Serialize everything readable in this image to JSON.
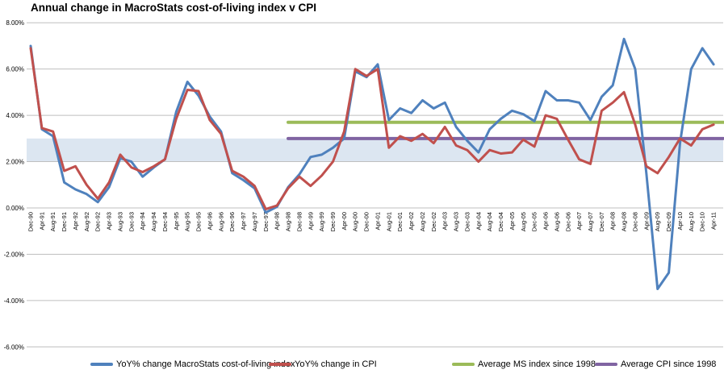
{
  "chart_data": {
    "type": "line",
    "title": "Annual change in MacroStats cost-of-living index v CPI",
    "x_labels": [
      "Dec-90",
      "Apr-91",
      "Aug-91",
      "Dec-91",
      "Apr-92",
      "Aug-92",
      "Dec-92",
      "Apr-93",
      "Aug-93",
      "Dec-93",
      "Apr-94",
      "Aug-94",
      "Dec-94",
      "Apr-95",
      "Aug-95",
      "Dec-95",
      "Apr-96",
      "Aug-96",
      "Dec-96",
      "Apr-97",
      "Aug-97",
      "Dec-97",
      "Apr-98",
      "Aug-98",
      "Dec-98",
      "Apr-99",
      "Aug-99",
      "Dec-99",
      "Apr-00",
      "Aug-00",
      "Dec-00",
      "Apr-01",
      "Aug-01",
      "Dec-01",
      "Apr-02",
      "Aug-02",
      "Dec-02",
      "Apr-03",
      "Aug-03",
      "Dec-03",
      "Apr-04",
      "Aug-04",
      "Dec-04",
      "Apr-05",
      "Aug-05",
      "Dec-05",
      "Apr-06",
      "Aug-06",
      "Dec-06",
      "Apr-07",
      "Aug-07",
      "Dec-07",
      "Apr-08",
      "Aug-08",
      "Dec-08",
      "Apr-09",
      "Aug-09",
      "Dec-09",
      "Apr-10",
      "Aug-10",
      "Dec-10",
      "Apr-11"
    ],
    "y_axis": {
      "unit": "%",
      "ticks": [
        {
          "label": "8.00%",
          "value": 8
        },
        {
          "label": "6.00%",
          "value": 6
        },
        {
          "label": "4.00%",
          "value": 4
        },
        {
          "label": "2.00%",
          "value": 2
        },
        {
          "label": "0.00%",
          "value": 0
        },
        {
          "label": "-2.00%",
          "value": -2
        },
        {
          "label": "-4.00%",
          "value": -4
        },
        {
          "label": "-6.00%",
          "value": -6
        }
      ]
    },
    "ylim": [
      -6,
      8
    ],
    "grid": true,
    "legend_position": "bottom",
    "band": {
      "from": 2.0,
      "to": 3.0,
      "color": "#DCE6F1"
    },
    "series": [
      {
        "name": "YoY% change MacroStats cost-of-living index",
        "color": "#4F81BD",
        "values": [
          7.0,
          3.4,
          3.1,
          1.1,
          0.8,
          0.6,
          0.25,
          0.9,
          2.15,
          2.0,
          1.35,
          1.75,
          2.1,
          4.15,
          5.45,
          4.85,
          3.95,
          3.3,
          1.5,
          1.2,
          0.85,
          -0.2,
          0.05,
          0.9,
          1.45,
          2.2,
          2.3,
          2.6,
          3.0,
          5.9,
          5.65,
          6.2,
          3.8,
          4.3,
          4.1,
          4.65,
          4.3,
          4.55,
          3.5,
          2.9,
          2.4,
          3.4,
          3.85,
          4.2,
          4.05,
          3.75,
          5.05,
          4.65,
          4.65,
          4.55,
          3.8,
          4.8,
          5.3,
          7.3,
          6.0,
          1.5,
          -3.5,
          -2.8,
          2.8,
          6.0,
          6.9,
          6.2
        ]
      },
      {
        "name": "YoY% change in CPI",
        "color": "#C0504D",
        "values": [
          6.9,
          3.45,
          3.3,
          1.6,
          1.8,
          1.0,
          0.4,
          1.1,
          2.3,
          1.75,
          1.55,
          1.8,
          2.1,
          3.85,
          5.1,
          5.05,
          3.8,
          3.2,
          1.6,
          1.35,
          0.95,
          -0.05,
          0.1,
          0.85,
          1.35,
          0.95,
          1.4,
          2.0,
          3.3,
          6.0,
          5.7,
          6.0,
          2.6,
          3.1,
          2.9,
          3.2,
          2.8,
          3.5,
          2.7,
          2.5,
          2.0,
          2.5,
          2.35,
          2.4,
          2.95,
          2.65,
          4.0,
          3.85,
          2.95,
          2.1,
          1.9,
          4.2,
          4.55,
          5.0,
          3.6,
          1.8,
          1.5,
          2.2,
          3.0,
          2.7,
          3.4,
          3.6
        ]
      },
      {
        "name": "Average MS index since 1998",
        "color": "#9BBB59",
        "type": "avg-line",
        "value": 3.7,
        "start_label": "Aug-98"
      },
      {
        "name": "Average CPI since 1998",
        "color": "#8064A2",
        "type": "avg-line",
        "value": 3.0,
        "start_label": "Aug-98"
      }
    ]
  }
}
